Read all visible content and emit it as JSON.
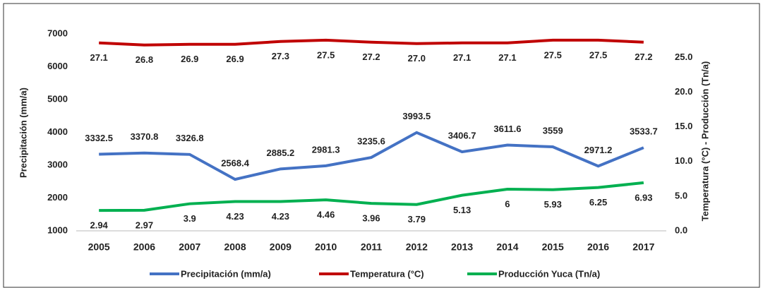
{
  "chart_data": {
    "type": "line",
    "categories": [
      "2005",
      "2006",
      "2007",
      "2008",
      "2009",
      "2010",
      "2011",
      "2012",
      "2013",
      "2014",
      "2015",
      "2016",
      "2017"
    ],
    "series": [
      {
        "name": "Precipitación (mm/a)",
        "color": "#4472c4",
        "values": [
          3332.5,
          3370.8,
          3326.8,
          2568.4,
          2885.2,
          2981.3,
          3235.6,
          3993.5,
          3406.7,
          3611.6,
          3559,
          2971.2,
          3533.7
        ]
      },
      {
        "name": "Temperatura (°C)",
        "color": "#c00000",
        "axis": "y2",
        "values": [
          27.1,
          26.8,
          26.9,
          26.9,
          27.3,
          27.5,
          27.2,
          27.0,
          27.1,
          27.1,
          27.5,
          27.5,
          27.2
        ],
        "value_labels": [
          "27.1",
          "26.8",
          "26.9",
          "26.9",
          "27.3",
          "27.5",
          "27.2",
          "27.0",
          "27.1",
          "27.1",
          "27.5",
          "27.5",
          "27.2"
        ]
      },
      {
        "name": "Producción Yuca (Tn/a)",
        "color": "#00b050",
        "axis": "y2",
        "values": [
          2.94,
          2.97,
          3.9,
          4.23,
          4.23,
          4.46,
          3.96,
          3.79,
          5.13,
          6,
          5.93,
          6.25,
          6.93
        ]
      }
    ],
    "ylabel": "Precipitación (mm/a)",
    "y2label": "Temperatura (°C) - Producción (Tn/a)",
    "ylim": [
      1000,
      7000
    ],
    "yticks": [
      1000,
      2000,
      3000,
      4000,
      5000,
      6000,
      7000
    ],
    "y2lim": [
      0,
      28.4
    ],
    "y2ticks": [
      {
        "value": 0,
        "label": "0.0"
      },
      {
        "value": 5,
        "label": "5.0"
      },
      {
        "value": 10,
        "label": "10.0"
      },
      {
        "value": 15,
        "label": "15.0"
      },
      {
        "value": 20,
        "label": "20.0"
      },
      {
        "value": 25,
        "label": "25.0"
      }
    ],
    "legend": "bottom"
  }
}
